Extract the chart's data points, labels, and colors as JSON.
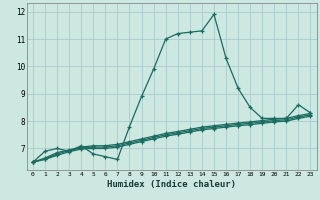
{
  "xlabel": "Humidex (Indice chaleur)",
  "background_color": "#cce8e0",
  "grid_color": "#aacccc",
  "line_color": "#1a6b60",
  "xlim": [
    -0.5,
    23.5
  ],
  "ylim": [
    6.2,
    12.3
  ],
  "xticks": [
    0,
    1,
    2,
    3,
    4,
    5,
    6,
    7,
    8,
    9,
    10,
    11,
    12,
    13,
    14,
    15,
    16,
    17,
    18,
    19,
    20,
    21,
    22,
    23
  ],
  "yticks": [
    7,
    8,
    9,
    10,
    11,
    12
  ],
  "ytick_labels": [
    "7",
    "8",
    "9",
    "10",
    "11",
    "12"
  ],
  "curve1_x": [
    0,
    1,
    2,
    3,
    4,
    5,
    6,
    7,
    8,
    9,
    10,
    11,
    12,
    13,
    14,
    15,
    16,
    17,
    18,
    19,
    20,
    21,
    22,
    23
  ],
  "curve1_y": [
    6.5,
    6.9,
    7.0,
    6.9,
    7.1,
    6.8,
    6.7,
    6.6,
    7.8,
    8.9,
    9.9,
    11.0,
    11.2,
    11.25,
    11.3,
    11.9,
    10.3,
    9.2,
    8.5,
    8.1,
    8.1,
    8.1,
    8.6,
    8.3
  ],
  "curve2_x": [
    0,
    1,
    2,
    3,
    4,
    5,
    6,
    7,
    8,
    9,
    10,
    11,
    12,
    13,
    14,
    15,
    16,
    17,
    18,
    19,
    20,
    21,
    22,
    23
  ],
  "curve2_y": [
    6.5,
    6.65,
    6.85,
    6.95,
    7.05,
    7.1,
    7.1,
    7.15,
    7.25,
    7.35,
    7.45,
    7.55,
    7.62,
    7.7,
    7.78,
    7.83,
    7.88,
    7.93,
    7.97,
    8.02,
    8.07,
    8.1,
    8.2,
    8.28
  ],
  "curve3_x": [
    0,
    1,
    2,
    3,
    4,
    5,
    6,
    7,
    8,
    9,
    10,
    11,
    12,
    13,
    14,
    15,
    16,
    17,
    18,
    19,
    20,
    21,
    22,
    23
  ],
  "curve3_y": [
    6.5,
    6.62,
    6.8,
    6.92,
    7.02,
    7.05,
    7.05,
    7.1,
    7.2,
    7.3,
    7.4,
    7.5,
    7.57,
    7.65,
    7.73,
    7.78,
    7.83,
    7.88,
    7.92,
    7.97,
    8.02,
    8.05,
    8.15,
    8.23
  ],
  "curve4_x": [
    0,
    1,
    2,
    3,
    4,
    5,
    6,
    7,
    8,
    9,
    10,
    11,
    12,
    13,
    14,
    15,
    16,
    17,
    18,
    19,
    20,
    21,
    22,
    23
  ],
  "curve4_y": [
    6.5,
    6.6,
    6.75,
    6.88,
    6.98,
    7.0,
    7.0,
    7.05,
    7.15,
    7.25,
    7.35,
    7.45,
    7.52,
    7.6,
    7.68,
    7.73,
    7.78,
    7.83,
    7.87,
    7.92,
    7.97,
    8.0,
    8.1,
    8.18
  ]
}
